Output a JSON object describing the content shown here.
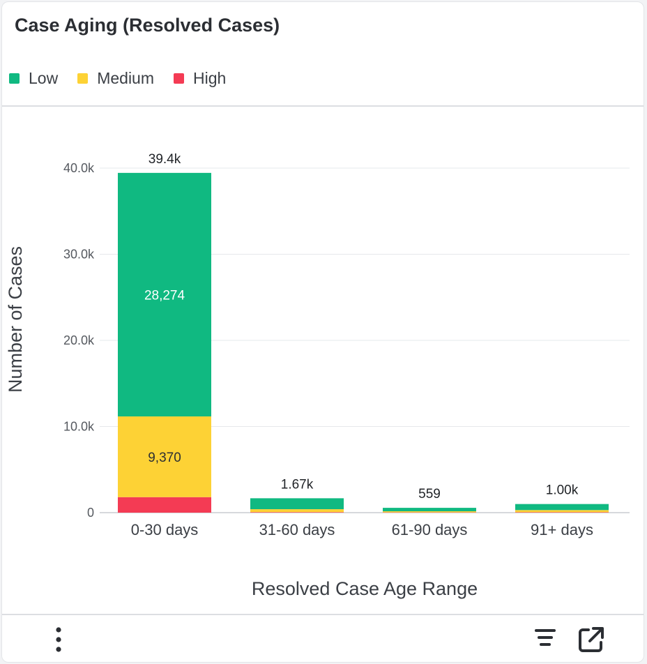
{
  "card": {
    "title": "Case Aging (Resolved Cases)"
  },
  "legend": [
    {
      "label": "Low",
      "color": "#10b981"
    },
    {
      "label": "Medium",
      "color": "#fdd235"
    },
    {
      "label": "High",
      "color": "#f43b54"
    }
  ],
  "footer": {
    "menu_icon": "kebab-menu-icon",
    "filter_icon": "filter-lines-icon",
    "export_icon": "external-link-icon"
  },
  "chart_data": {
    "type": "bar",
    "stacked": true,
    "xlabel": "Resolved Case Age Range",
    "ylabel": "Number of Cases",
    "ylim": [
      0,
      40000
    ],
    "yticks": [
      0,
      10000,
      20000,
      30000,
      40000
    ],
    "ytick_labels": [
      "0",
      "10.0k",
      "20.0k",
      "30.0k",
      "40.0k"
    ],
    "grid": true,
    "legend_position": "top-left",
    "categories": [
      "0-30 days",
      "31-60 days",
      "61-90 days",
      "91+ days"
    ],
    "series": [
      {
        "name": "High",
        "color": "#f43b54",
        "values": [
          1800,
          60,
          30,
          50
        ],
        "labels": [
          "",
          "",
          "",
          ""
        ]
      },
      {
        "name": "Medium",
        "color": "#fdd235",
        "values": [
          9370,
          340,
          130,
          250
        ],
        "labels": [
          "9,370",
          "",
          "",
          ""
        ]
      },
      {
        "name": "Low",
        "color": "#10b981",
        "values": [
          28274,
          1270,
          399,
          700
        ],
        "labels": [
          "28,274",
          "",
          "",
          ""
        ]
      }
    ],
    "totals": [
      39444,
      1670,
      559,
      1000
    ],
    "total_labels": [
      "39.4k",
      "1.67k",
      "559",
      "1.00k"
    ]
  }
}
